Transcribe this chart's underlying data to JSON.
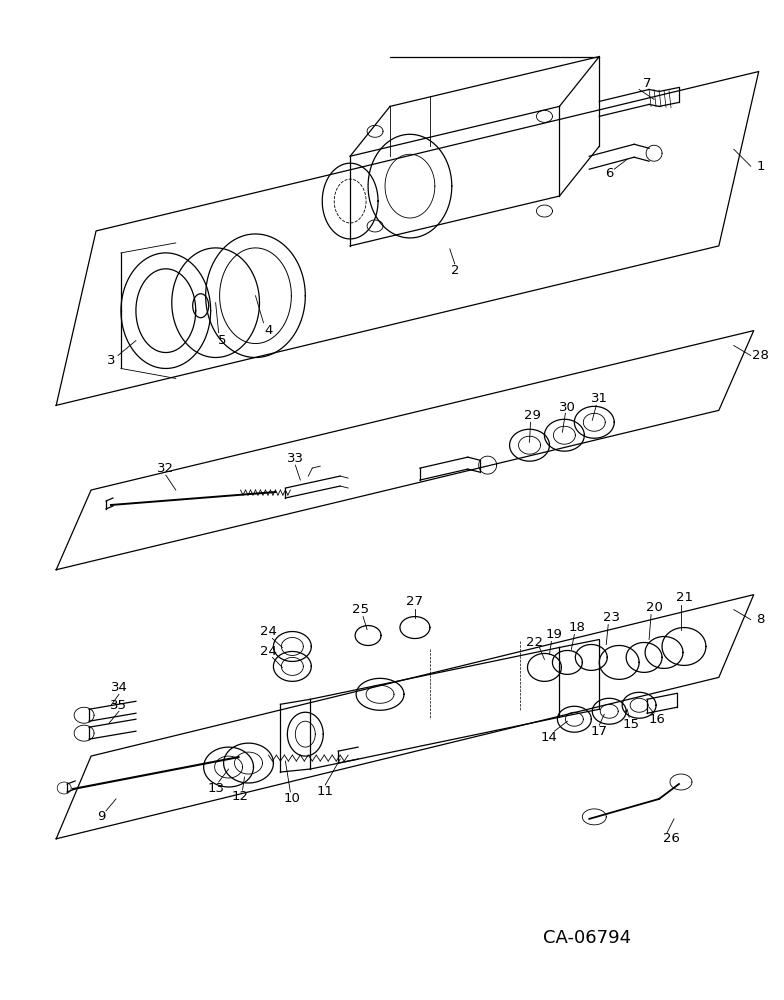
{
  "background_color": "#ffffff",
  "diagram_id": "CA-06794",
  "line_color": "#000000",
  "fig_width": 7.84,
  "fig_height": 10.0,
  "dpi": 100
}
